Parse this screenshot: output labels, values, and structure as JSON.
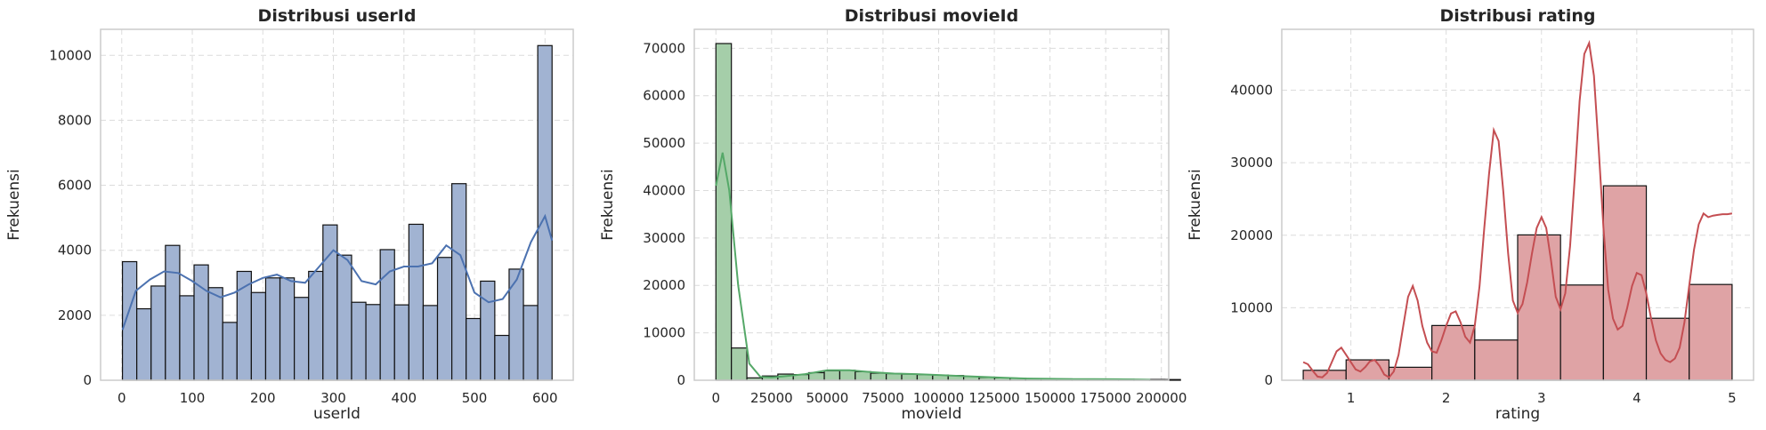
{
  "chart_data": [
    {
      "type": "bar",
      "title": "Distribusi userId",
      "xlabel": "userId",
      "ylabel": "Frekuensi",
      "color": "#4c72b0",
      "bar_fill": "#a1b3d2",
      "xlim": [
        -30,
        640
      ],
      "ylim": [
        0,
        10800
      ],
      "xticks": [
        0,
        100,
        200,
        300,
        400,
        500,
        600
      ],
      "yticks": [
        0,
        2000,
        4000,
        6000,
        8000,
        10000
      ],
      "bins": {
        "start": 1,
        "width": 20.3,
        "values": [
          3650,
          2200,
          2900,
          4150,
          2600,
          3550,
          2850,
          1780,
          3350,
          2700,
          3150,
          3150,
          2550,
          3350,
          4780,
          3850,
          2400,
          2330,
          4020,
          2320,
          4800,
          2300,
          3780,
          6050,
          1900,
          3050,
          1380,
          3420,
          2300,
          10300
        ]
      },
      "kde": {
        "x": [
          1,
          20,
          40,
          60,
          80,
          100,
          120,
          140,
          160,
          180,
          200,
          220,
          240,
          260,
          280,
          300,
          320,
          340,
          360,
          380,
          400,
          420,
          440,
          460,
          480,
          500,
          520,
          540,
          560,
          580,
          600,
          610
        ],
        "y": [
          1550,
          2750,
          3100,
          3350,
          3300,
          3050,
          2750,
          2550,
          2700,
          2950,
          3150,
          3250,
          3050,
          3000,
          3500,
          4000,
          3700,
          3050,
          2950,
          3350,
          3500,
          3500,
          3600,
          4150,
          3850,
          2700,
          2400,
          2500,
          3100,
          4250,
          5050,
          4300
        ]
      }
    },
    {
      "type": "bar",
      "title": "Distribusi movieId",
      "xlabel": "movieId",
      "ylabel": "Frekuensi",
      "color": "#55a868",
      "bar_fill": "#a5cea9",
      "xlim": [
        -9700,
        203300
      ],
      "ylim": [
        0,
        74000
      ],
      "xticks": [
        0,
        25000,
        50000,
        75000,
        100000,
        125000,
        150000,
        175000,
        200000
      ],
      "yticks": [
        0,
        10000,
        20000,
        30000,
        40000,
        50000,
        60000,
        70000
      ],
      "bins": {
        "start": 1,
        "width": 6952,
        "values": [
          71000,
          6800,
          500,
          900,
          1300,
          1200,
          1600,
          2000,
          2100,
          1800,
          1500,
          1400,
          1300,
          1200,
          1100,
          1000,
          800,
          600,
          500,
          400,
          350,
          300,
          280,
          250,
          250,
          220,
          200,
          180,
          170,
          150
        ]
      },
      "kde": {
        "x": [
          0,
          3000,
          6000,
          10000,
          15000,
          20000,
          25000,
          30000,
          40000,
          50000,
          60000,
          70000,
          80000,
          90000,
          100000,
          110000,
          120000,
          130000,
          140000,
          150000,
          160000,
          170000,
          180000,
          190000,
          195000
        ],
        "y": [
          41000,
          48000,
          40000,
          20000,
          3500,
          700,
          600,
          800,
          1300,
          2100,
          2100,
          1700,
          1400,
          1300,
          1100,
          900,
          700,
          500,
          350,
          300,
          250,
          250,
          200,
          150,
          100
        ]
      }
    },
    {
      "type": "bar",
      "title": "Distribusi rating",
      "xlabel": "rating",
      "ylabel": "Frekuensi",
      "color": "#c44e52",
      "bar_fill": "#dfa3a5",
      "xlim": [
        0.275,
        5.225
      ],
      "ylim": [
        0,
        48400
      ],
      "xticks": [
        1,
        2,
        3,
        4,
        5
      ],
      "yticks": [
        0,
        10000,
        20000,
        30000,
        40000
      ],
      "bins": {
        "start": 0.5,
        "width": 0.45,
        "values": [
          1370,
          2811,
          1791,
          7551,
          5550,
          20047,
          13136,
          26818,
          8551,
          13211
        ]
      },
      "kde": {
        "x": [
          0.5,
          0.55,
          0.6,
          0.65,
          0.7,
          0.75,
          0.8,
          0.85,
          0.9,
          0.95,
          1.0,
          1.05,
          1.1,
          1.15,
          1.2,
          1.25,
          1.3,
          1.35,
          1.4,
          1.45,
          1.5,
          1.55,
          1.6,
          1.65,
          1.7,
          1.75,
          1.8,
          1.85,
          1.9,
          1.95,
          2.0,
          2.05,
          2.1,
          2.15,
          2.2,
          2.25,
          2.3,
          2.35,
          2.4,
          2.45,
          2.5,
          2.55,
          2.6,
          2.65,
          2.7,
          2.75,
          2.8,
          2.85,
          2.9,
          2.95,
          3.0,
          3.05,
          3.1,
          3.15,
          3.2,
          3.25,
          3.3,
          3.35,
          3.4,
          3.45,
          3.5,
          3.55,
          3.6,
          3.65,
          3.7,
          3.75,
          3.8,
          3.85,
          3.9,
          3.95,
          4.0,
          4.05,
          4.1,
          4.15,
          4.2,
          4.25,
          4.3,
          4.35,
          4.4,
          4.45,
          4.5,
          4.55,
          4.6,
          4.65,
          4.7,
          4.75,
          4.8,
          4.85,
          4.9,
          4.95,
          5.0
        ],
        "y": [
          2500,
          2200,
          1300,
          500,
          400,
          1000,
          2500,
          4000,
          4500,
          3500,
          2500,
          1500,
          1200,
          1800,
          2600,
          2800,
          2000,
          800,
          400,
          1200,
          3500,
          7500,
          11500,
          13000,
          11000,
          7500,
          5200,
          4000,
          3800,
          5500,
          7500,
          9200,
          9500,
          8000,
          6000,
          5200,
          7500,
          13000,
          21000,
          28500,
          34500,
          33000,
          26000,
          17500,
          11000,
          9300,
          10500,
          13500,
          17500,
          21000,
          22500,
          21000,
          16500,
          11500,
          9800,
          12000,
          18500,
          28000,
          38500,
          45000,
          46500,
          42000,
          32000,
          21000,
          12500,
          8500,
          7000,
          7500,
          10000,
          13000,
          14800,
          14500,
          12000,
          8500,
          5500,
          3700,
          2800,
          2500,
          3000,
          4500,
          8000,
          13000,
          18000,
          21500,
          23000,
          22500,
          22700,
          22800,
          22900,
          22900,
          23000
        ]
      }
    }
  ]
}
